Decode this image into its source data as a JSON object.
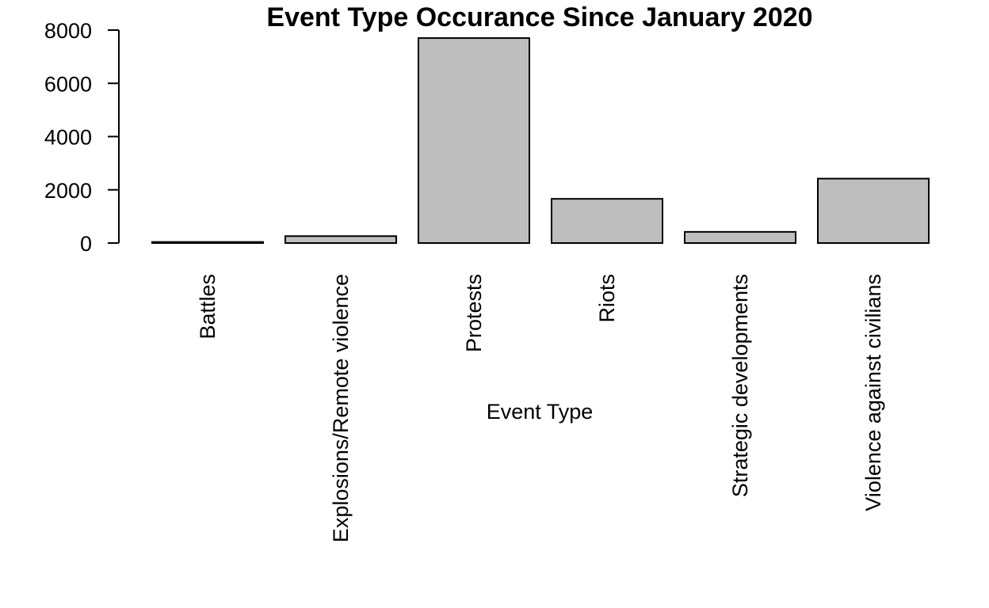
{
  "chart_data": {
    "type": "bar",
    "title": "Event Type Occurance Since January 2020",
    "xlabel": "Event Type",
    "ylabel": "",
    "categories": [
      "Battles",
      "Explosions/Remote violence",
      "Protests",
      "Riots",
      "Strategic developments",
      "Violence against civilians"
    ],
    "values": [
      40,
      260,
      7700,
      1660,
      420,
      2420
    ],
    "ylim": [
      0,
      8000
    ],
    "yticks": [
      0,
      2000,
      4000,
      6000,
      8000
    ],
    "bar_color": "#bebebe",
    "grid": false,
    "legend": "none"
  }
}
